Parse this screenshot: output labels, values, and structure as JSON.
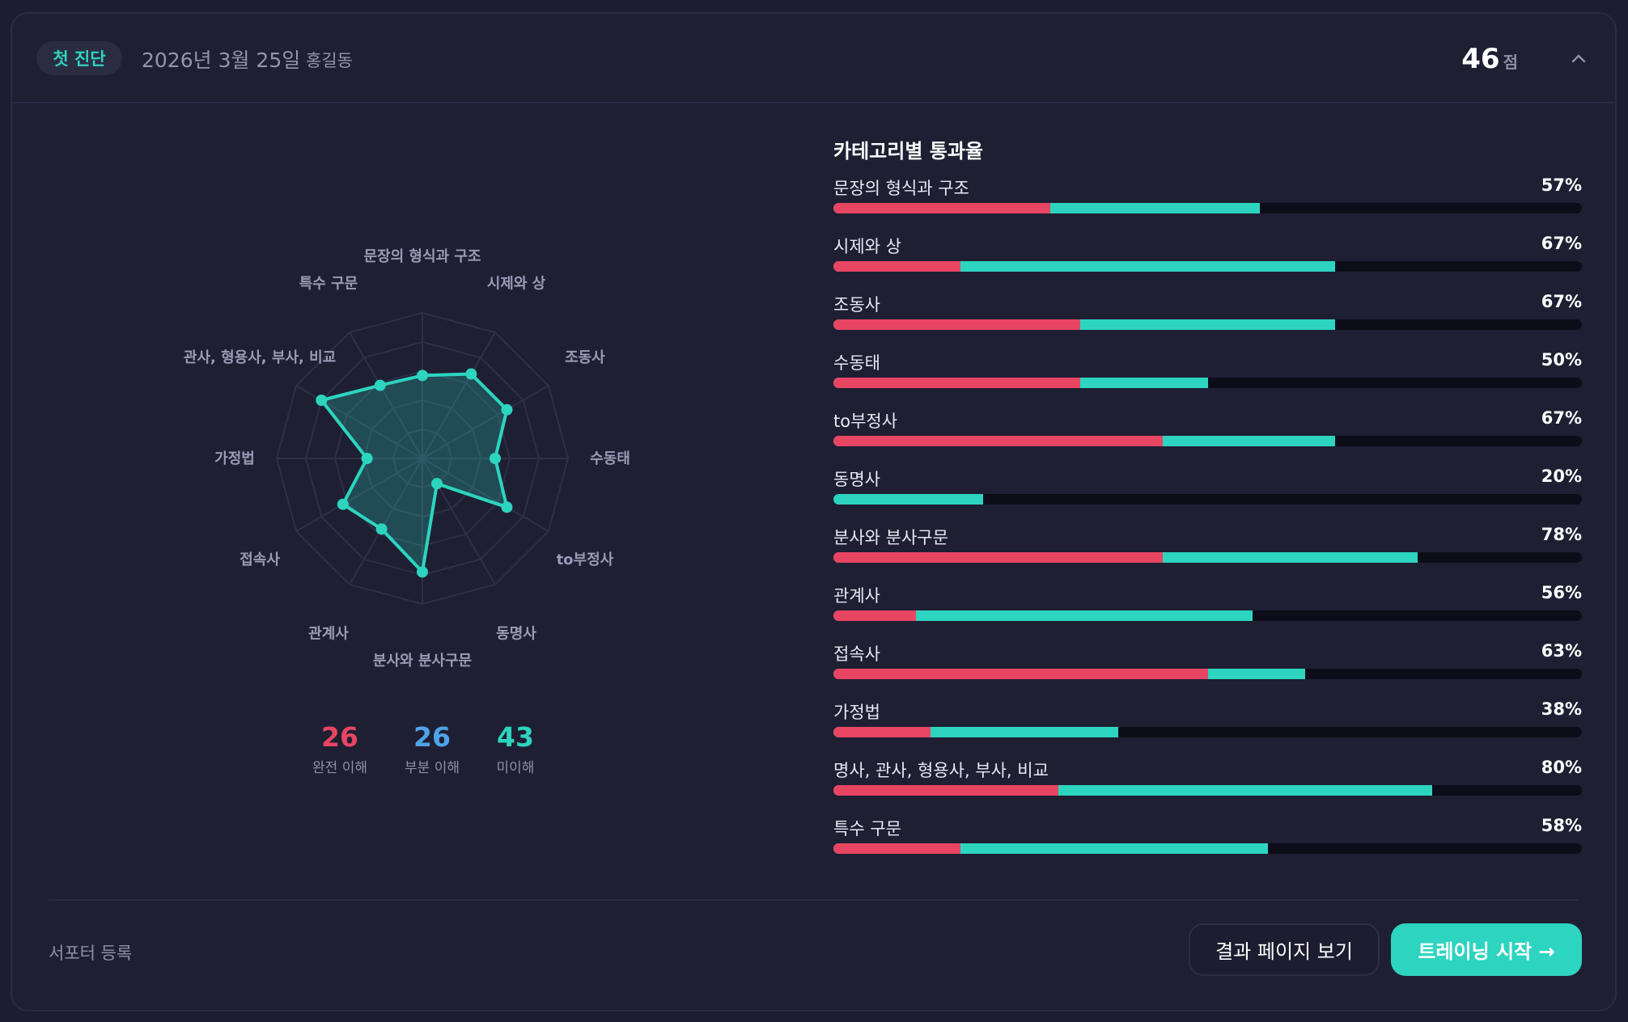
{
  "header": {
    "badge": "첫 진단",
    "date": "2026년 3월 25일",
    "name": "홍길동",
    "score": "46",
    "score_unit": "점",
    "collapse_icon": "chevron-up-icon"
  },
  "colors": {
    "teal": "#2dd4bf",
    "red": "#e84562",
    "blue": "#4fa3e8",
    "track": "#0d0d19"
  },
  "chart_data": [
    {
      "type": "radar",
      "categories": [
        "문장의 형식과 구조",
        "시제와 상",
        "조동사",
        "수동태",
        "to부정사",
        "동명사",
        "분사와 분사구문",
        "관계사",
        "접속사",
        "가정법",
        "관사, 형용사, 부사, 비교",
        "특수 구문"
      ],
      "values": [
        57,
        67,
        67,
        50,
        67,
        20,
        78,
        56,
        63,
        38,
        80,
        58
      ],
      "range": [
        0,
        100
      ],
      "rings": 5
    },
    {
      "type": "bar",
      "title": "카테고리별 통과율",
      "categories": [
        "문장의 형식과 구조",
        "시제와 상",
        "조동사",
        "수동태",
        "to부정사",
        "동명사",
        "분사와 분사구문",
        "관계사",
        "접속사",
        "가정법",
        "명사, 관사, 형용사, 부사, 비교",
        "특수 구문"
      ],
      "values": [
        57,
        67,
        67,
        50,
        67,
        20,
        78,
        56,
        63,
        38,
        80,
        58
      ],
      "labels": [
        "57%",
        "67%",
        "67%",
        "50%",
        "67%",
        "20%",
        "78%",
        "56%",
        "63%",
        "38%",
        "80%",
        "58%"
      ],
      "full_understanding": [
        29,
        17,
        33,
        33,
        44,
        0,
        44,
        11,
        50,
        13,
        30,
        17
      ],
      "xlim": [
        0,
        100
      ]
    }
  ],
  "stats": [
    {
      "value": "26",
      "label": "완전 이해",
      "color": "#e84562"
    },
    {
      "value": "26",
      "label": "부분 이해",
      "color": "#4fa3e8"
    },
    {
      "value": "43",
      "label": "미이해",
      "color": "#2dd4bf"
    }
  ],
  "footer": {
    "supporter": "서포터 등록",
    "results_button": "결과 페이지 보기",
    "training_button": "트레이닝 시작 →"
  }
}
